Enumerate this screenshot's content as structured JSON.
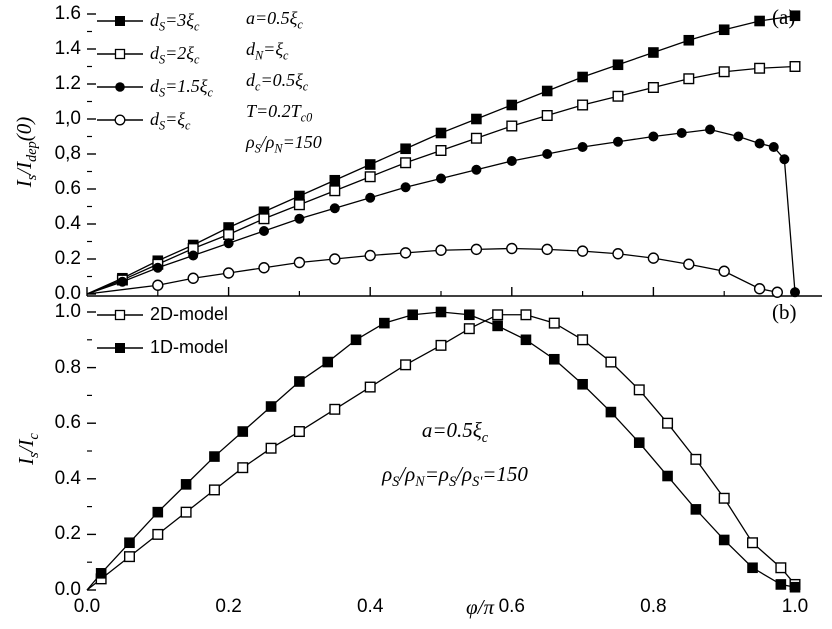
{
  "figure": {
    "background": "#ffffff",
    "ink": "#000000",
    "panel_a_label": "(a)",
    "panel_b_label": "(b)"
  },
  "chart_data": [
    {
      "type": "line",
      "panel": "a",
      "title": "",
      "xlabel": "φ/π",
      "ylabel": "I_s/I_dep(0)",
      "xlim": [
        0,
        1.042
      ],
      "ylim": [
        0,
        1.657
      ],
      "grid": false,
      "legend_position": "top-left",
      "x_ticks": {
        "values": [
          0,
          0.2,
          0.4,
          0.6,
          0.8,
          1.0
        ],
        "labels": [
          "0.0",
          "0.2",
          "0.4",
          "0.6",
          "0.8",
          "1.0"
        ],
        "show_labels": false
      },
      "y_ticks": {
        "values": [
          0,
          0.2,
          0.4,
          0.6,
          0.8,
          1.0,
          1.2,
          1.4,
          1.6
        ],
        "labels": [
          "0.0",
          "0.2",
          "0.4",
          "0.6",
          "0,8",
          "1,0",
          "1.2",
          "1.4",
          "1.6"
        ]
      },
      "legend": [
        {
          "marker": "square-filled",
          "label": "d_S=3ξ_c"
        },
        {
          "marker": "square-open",
          "label": "d_S=2ξ_c"
        },
        {
          "marker": "circle-filled",
          "label": "d_S=1.5ξ_c"
        },
        {
          "marker": "circle-open",
          "label": "d_S=ξ_c"
        }
      ],
      "annotations": [
        "a=0.5ξ_c",
        "d_N=ξ_c",
        "d_c=0.5ξ_c",
        "T=0.2T_c0",
        "ρ_S/ρ_N=150"
      ],
      "series": [
        {
          "name": "d_S=3ξ_c",
          "marker": "square-filled",
          "x": [
            0,
            0.05,
            0.1,
            0.15,
            0.2,
            0.25,
            0.3,
            0.35,
            0.4,
            0.45,
            0.5,
            0.55,
            0.6,
            0.65,
            0.7,
            0.75,
            0.8,
            0.85,
            0.9,
            0.95,
            1.0
          ],
          "y": [
            0,
            0.09,
            0.19,
            0.28,
            0.38,
            0.47,
            0.56,
            0.65,
            0.74,
            0.83,
            0.92,
            1.0,
            1.08,
            1.16,
            1.24,
            1.31,
            1.38,
            1.45,
            1.51,
            1.56,
            1.59
          ]
        },
        {
          "name": "d_S=2ξ_c",
          "marker": "square-open",
          "x": [
            0,
            0.05,
            0.1,
            0.15,
            0.2,
            0.25,
            0.3,
            0.35,
            0.4,
            0.45,
            0.5,
            0.55,
            0.6,
            0.65,
            0.7,
            0.75,
            0.8,
            0.85,
            0.9,
            0.95,
            1.0
          ],
          "y": [
            0,
            0.08,
            0.17,
            0.26,
            0.34,
            0.43,
            0.51,
            0.59,
            0.67,
            0.75,
            0.82,
            0.89,
            0.96,
            1.02,
            1.08,
            1.13,
            1.18,
            1.23,
            1.27,
            1.29,
            1.3
          ]
        },
        {
          "name": "d_S=1.5ξ_c",
          "marker": "circle-filled",
          "x": [
            0,
            0.05,
            0.1,
            0.15,
            0.2,
            0.25,
            0.3,
            0.35,
            0.4,
            0.45,
            0.5,
            0.55,
            0.6,
            0.65,
            0.7,
            0.75,
            0.8,
            0.84,
            0.88,
            0.92,
            0.95,
            0.97,
            0.985,
            1.0
          ],
          "y": [
            0,
            0.07,
            0.15,
            0.22,
            0.29,
            0.36,
            0.43,
            0.49,
            0.55,
            0.61,
            0.66,
            0.71,
            0.76,
            0.8,
            0.84,
            0.87,
            0.9,
            0.92,
            0.94,
            0.9,
            0.86,
            0.84,
            0.77,
            0.01
          ]
        },
        {
          "name": "d_S=ξ_c",
          "marker": "circle-open",
          "x": [
            0,
            0.1,
            0.15,
            0.2,
            0.25,
            0.3,
            0.35,
            0.4,
            0.45,
            0.5,
            0.55,
            0.6,
            0.65,
            0.7,
            0.75,
            0.8,
            0.85,
            0.9,
            0.95,
            0.975
          ],
          "y": [
            0,
            0.05,
            0.09,
            0.12,
            0.15,
            0.18,
            0.2,
            0.22,
            0.235,
            0.25,
            0.255,
            0.26,
            0.255,
            0.245,
            0.23,
            0.205,
            0.17,
            0.13,
            0.03,
            0.01
          ]
        }
      ]
    },
    {
      "type": "line",
      "panel": "b",
      "title": "",
      "xlabel": "φ/π",
      "ylabel": "I_s/I_c",
      "xlim": [
        0,
        1.042
      ],
      "ylim": [
        0,
        1.065
      ],
      "grid": false,
      "legend_position": "top-left",
      "x_ticks": {
        "values": [
          0,
          0.2,
          0.4,
          0.6,
          0.8,
          1.0
        ],
        "labels": [
          "0.0",
          "0.2",
          "0.4",
          "0.6",
          "0.8",
          "1.0"
        ],
        "show_labels": true
      },
      "y_ticks": {
        "values": [
          0,
          0.2,
          0.4,
          0.6,
          0.8,
          1.0
        ],
        "labels": [
          "0.0",
          "0.2",
          "0.4",
          "0.6",
          "0.8",
          "1.0"
        ]
      },
      "legend": [
        {
          "marker": "square-open",
          "label": "2D-model"
        },
        {
          "marker": "square-filled",
          "label": "1D-model"
        }
      ],
      "annotations": [
        "a=0.5ξ_c",
        "ρ_S/ρ_N=ρ_S/ρ_S'=150"
      ],
      "series": [
        {
          "name": "2D-model",
          "marker": "square-open",
          "x": [
            0,
            0.02,
            0.06,
            0.1,
            0.14,
            0.18,
            0.22,
            0.26,
            0.3,
            0.35,
            0.4,
            0.45,
            0.5,
            0.54,
            0.58,
            0.62,
            0.66,
            0.7,
            0.74,
            0.78,
            0.82,
            0.86,
            0.9,
            0.94,
            0.98,
            1.0
          ],
          "y": [
            0,
            0.04,
            0.12,
            0.2,
            0.28,
            0.36,
            0.44,
            0.51,
            0.57,
            0.65,
            0.73,
            0.81,
            0.88,
            0.94,
            0.99,
            0.99,
            0.96,
            0.9,
            0.82,
            0.72,
            0.6,
            0.47,
            0.33,
            0.17,
            0.08,
            0.02
          ]
        },
        {
          "name": "1D-model",
          "marker": "square-filled",
          "x": [
            0,
            0.02,
            0.06,
            0.1,
            0.14,
            0.18,
            0.22,
            0.26,
            0.3,
            0.34,
            0.38,
            0.42,
            0.46,
            0.5,
            0.54,
            0.58,
            0.62,
            0.66,
            0.7,
            0.74,
            0.78,
            0.82,
            0.86,
            0.9,
            0.94,
            0.98,
            1.0
          ],
          "y": [
            0,
            0.06,
            0.17,
            0.28,
            0.38,
            0.48,
            0.57,
            0.66,
            0.75,
            0.82,
            0.9,
            0.96,
            0.99,
            1.0,
            0.99,
            0.95,
            0.9,
            0.83,
            0.74,
            0.64,
            0.53,
            0.41,
            0.29,
            0.18,
            0.08,
            0.02,
            0.01
          ]
        }
      ]
    }
  ]
}
